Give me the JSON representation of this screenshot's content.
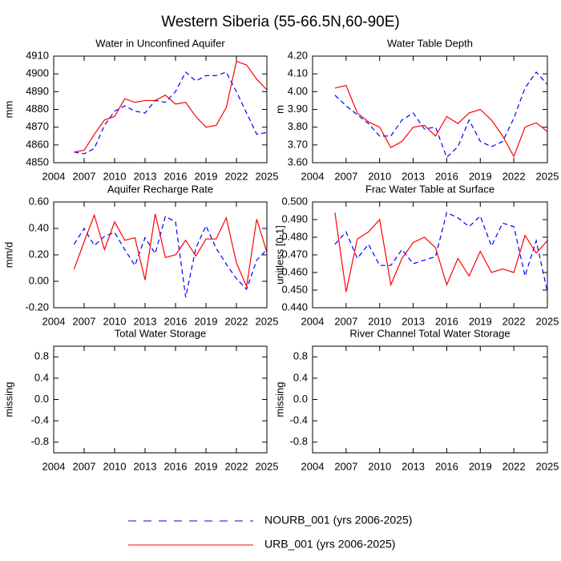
{
  "title": "Western Siberia (55-66.5N,60-90E)",
  "chart_data": [
    {
      "type": "line",
      "title": "Water in Unconfined Aquifer",
      "ylabel": "mm",
      "x": [
        2006,
        2007,
        2008,
        2009,
        2010,
        2011,
        2012,
        2013,
        2014,
        2015,
        2016,
        2017,
        2018,
        2019,
        2020,
        2021,
        2022,
        2023,
        2024,
        2025
      ],
      "xlim": [
        2004,
        2025
      ],
      "xticks": [
        2004,
        2007,
        2010,
        2013,
        2016,
        2019,
        2022,
        2025
      ],
      "ylim": [
        4850,
        4910
      ],
      "yticks": [
        4850,
        4860,
        4870,
        4880,
        4890,
        4900,
        4910
      ],
      "series": [
        {
          "name": "NOURB_001 (yrs 2006-2025)",
          "color": "#0000ff",
          "dash": true,
          "values": [
            4856,
            4855,
            4858,
            4871,
            4879,
            4882,
            4879,
            4878,
            4885,
            4884,
            4890,
            4901,
            4896,
            4899,
            4899,
            4901,
            4890,
            4878,
            4866,
            4867
          ]
        },
        {
          "name": "URB_001 (yrs 2006-2025)",
          "color": "#ff0000",
          "dash": false,
          "values": [
            4856,
            4857,
            4866,
            4874,
            4876,
            4886,
            4884,
            4885,
            4885,
            4888,
            4883,
            4884,
            4876,
            4870,
            4871,
            4881,
            4907,
            4905,
            4897,
            4891
          ]
        }
      ]
    },
    {
      "type": "line",
      "title": "Water Table Depth",
      "ylabel": "m",
      "x": [
        2006,
        2007,
        2008,
        2009,
        2010,
        2011,
        2012,
        2013,
        2014,
        2015,
        2016,
        2017,
        2018,
        2019,
        2020,
        2021,
        2022,
        2023,
        2024,
        2025
      ],
      "xlim": [
        2004,
        2025
      ],
      "xticks": [
        2004,
        2007,
        2010,
        2013,
        2016,
        2019,
        2022,
        2025
      ],
      "ylim": [
        3.6,
        4.2
      ],
      "yticks": [
        {
          "value": 3.6,
          "label": "3.60"
        },
        {
          "value": 3.7,
          "label": "3.70"
        },
        {
          "value": 3.8,
          "label": "3.80"
        },
        {
          "value": 3.9,
          "label": "3.90"
        },
        {
          "value": 4.0,
          "label": "4.00"
        },
        {
          "value": 4.1,
          "label": "4.10"
        },
        {
          "value": 4.2,
          "label": "4.20"
        }
      ],
      "series": [
        {
          "name": "NOURB_001 (yrs 2006-2025)",
          "color": "#0000ff",
          "dash": true,
          "values": [
            3.98,
            3.92,
            3.87,
            3.82,
            3.75,
            3.75,
            3.84,
            3.88,
            3.79,
            3.8,
            3.63,
            3.69,
            3.84,
            3.72,
            3.69,
            3.72,
            3.85,
            4.02,
            4.11,
            4.04
          ]
        },
        {
          "name": "URB_001 (yrs 2006-2025)",
          "color": "#ff0000",
          "dash": false,
          "values": [
            4.02,
            4.035,
            3.88,
            3.83,
            3.8,
            3.685,
            3.72,
            3.8,
            3.81,
            3.75,
            3.86,
            3.82,
            3.88,
            3.9,
            3.84,
            3.75,
            3.635,
            3.8,
            3.825,
            3.775
          ]
        }
      ]
    },
    {
      "type": "line",
      "title": "Aquifer Recharge Rate",
      "ylabel": "mm/d",
      "x": [
        2006,
        2007,
        2008,
        2009,
        2010,
        2011,
        2012,
        2013,
        2014,
        2015,
        2016,
        2017,
        2018,
        2019,
        2020,
        2021,
        2022,
        2023,
        2024,
        2025
      ],
      "xlim": [
        2004,
        2025
      ],
      "xticks": [
        2004,
        2007,
        2010,
        2013,
        2016,
        2019,
        2022,
        2025
      ],
      "ylim": [
        -0.2,
        0.6
      ],
      "yticks": [
        {
          "value": -0.2,
          "label": "-0.20"
        },
        {
          "value": 0,
          "label": "0.00"
        },
        {
          "value": 0.2,
          "label": "0.20"
        },
        {
          "value": 0.4,
          "label": "0.40"
        },
        {
          "value": 0.6,
          "label": "0.60"
        }
      ],
      "series": [
        {
          "name": "NOURB_001 (yrs 2006-2025)",
          "color": "#0000ff",
          "dash": true,
          "values": [
            0.28,
            0.4,
            0.27,
            0.34,
            0.37,
            0.24,
            0.12,
            0.33,
            0.21,
            0.49,
            0.45,
            -0.12,
            0.25,
            0.42,
            0.25,
            0.13,
            0.02,
            -0.06,
            0.16,
            0.24
          ]
        },
        {
          "name": "URB_001 (yrs 2006-2025)",
          "color": "#ff0000",
          "dash": false,
          "values": [
            0.09,
            0.3,
            0.5,
            0.24,
            0.45,
            0.31,
            0.33,
            0.01,
            0.51,
            0.18,
            0.2,
            0.31,
            0.19,
            0.32,
            0.32,
            0.48,
            0.14,
            -0.04,
            0.47,
            0.22
          ]
        }
      ]
    },
    {
      "type": "line",
      "title": "Frac Water Table at Surface",
      "ylabel": "unitless [0-1]",
      "x": [
        2006,
        2007,
        2008,
        2009,
        2010,
        2011,
        2012,
        2013,
        2014,
        2015,
        2016,
        2017,
        2018,
        2019,
        2020,
        2021,
        2022,
        2023,
        2024,
        2025
      ],
      "xlim": [
        2004,
        2025
      ],
      "xticks": [
        2004,
        2007,
        2010,
        2013,
        2016,
        2019,
        2022,
        2025
      ],
      "ylim": [
        0.44,
        0.5
      ],
      "yticks": [
        {
          "value": 0.44,
          "label": "0.440"
        },
        {
          "value": 0.45,
          "label": "0.450"
        },
        {
          "value": 0.46,
          "label": "0.460"
        },
        {
          "value": 0.47,
          "label": "0.470"
        },
        {
          "value": 0.48,
          "label": "0.480"
        },
        {
          "value": 0.49,
          "label": "0.490"
        },
        {
          "value": 0.5,
          "label": "0.500"
        }
      ],
      "series": [
        {
          "name": "NOURB_001 (yrs 2006-2025)",
          "color": "#0000ff",
          "dash": true,
          "values": [
            0.476,
            0.483,
            0.468,
            0.476,
            0.464,
            0.464,
            0.473,
            0.465,
            0.467,
            0.469,
            0.494,
            0.491,
            0.486,
            0.492,
            0.475,
            0.488,
            0.486,
            0.458,
            0.478,
            0.449
          ]
        },
        {
          "name": "URB_001 (yrs 2006-2025)",
          "color": "#ff0000",
          "dash": false,
          "values": [
            0.494,
            0.449,
            0.479,
            0.483,
            0.49,
            0.453,
            0.468,
            0.477,
            0.48,
            0.474,
            0.453,
            0.468,
            0.458,
            0.472,
            0.46,
            0.462,
            0.46,
            0.481,
            0.471,
            0.478
          ]
        }
      ]
    },
    {
      "type": "line",
      "title": "Total Water Storage",
      "ylabel": "missing",
      "xlim": [
        2004,
        2025
      ],
      "xticks": [
        2004,
        2007,
        2010,
        2013,
        2016,
        2019,
        2022,
        2025
      ],
      "ylim": [
        -1,
        1
      ],
      "yticks": [
        -0.8,
        -0.4,
        {
          "value": 0,
          "label": "0.0"
        },
        0.4,
        0.8
      ]
    },
    {
      "type": "line",
      "title": "River Channel Total Water Storage",
      "ylabel": "missing",
      "xlim": [
        2004,
        2025
      ],
      "xticks": [
        2004,
        2007,
        2010,
        2013,
        2016,
        2019,
        2022,
        2025
      ],
      "ylim": [
        -1,
        1
      ],
      "yticks": [
        -0.8,
        -0.4,
        {
          "value": 0,
          "label": "0.0"
        },
        0.4,
        0.8
      ]
    }
  ]
}
